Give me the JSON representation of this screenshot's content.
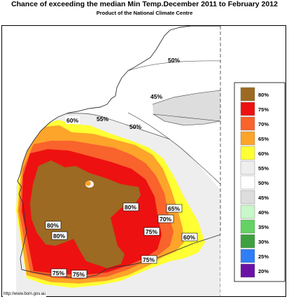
{
  "title": "Chance of exceeding the median Min Temp.December 2011 to February 2012",
  "subtitle": "Product of the National Climate Centre",
  "source_url": "http://www.bom.gov.au",
  "map_labels": {
    "l50_top": "50%",
    "l45": "45%",
    "l55": "55%",
    "l60_north": "60%",
    "l50_mid": "50%",
    "l80_east": "80%",
    "l65": "65%",
    "l70": "70%",
    "l80_west": "80%",
    "l80_west2": "80%",
    "l75_mid": "75%",
    "l60_south": "60%",
    "l75_se": "75%",
    "l75_sw1": "75%",
    "l75_sw2": "75%"
  },
  "legend": [
    {
      "label": "80%",
      "color": "#9c6a22"
    },
    {
      "label": "75%",
      "color": "#ee1111"
    },
    {
      "label": "70%",
      "color": "#f9632c"
    },
    {
      "label": "65%",
      "color": "#fda42a"
    },
    {
      "label": "60%",
      "color": "#ffff33"
    },
    {
      "label": "55%",
      "color": "#eeeeee"
    },
    {
      "label": "50%",
      "color": "#ffffff"
    },
    {
      "label": "45%",
      "color": "#dddddd"
    },
    {
      "label": "40%",
      "color": "#c9f7c9"
    },
    {
      "label": "35%",
      "color": "#63d263"
    },
    {
      "label": "30%",
      "color": "#3ea03e"
    },
    {
      "label": "25%",
      "color": "#2f7ef5"
    },
    {
      "label": "20%",
      "color": "#6a12a6"
    }
  ]
}
